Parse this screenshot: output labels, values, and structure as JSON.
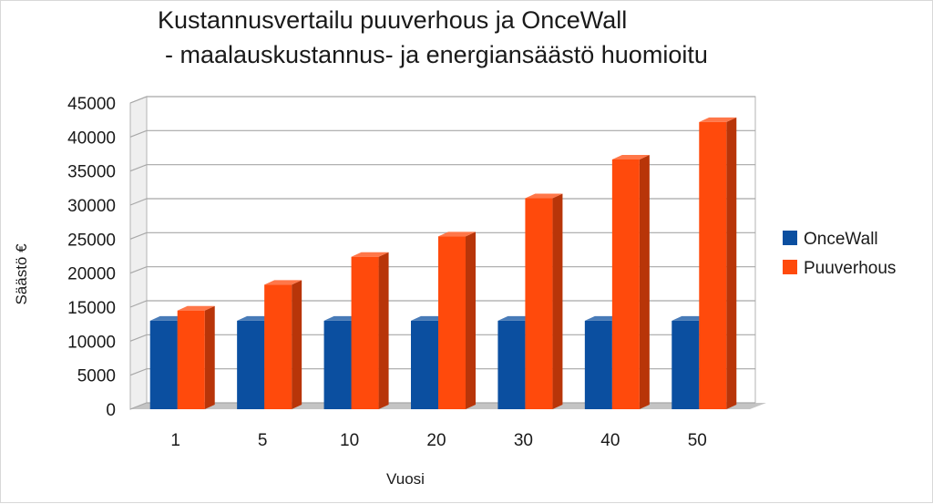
{
  "chart_data": {
    "type": "bar",
    "title": "Kustannusvertailu  puuverhous ja OnceWall",
    "subtitle": "- maalauskustannus- ja energiansäästö huomioitu",
    "xlabel": "Vuosi",
    "ylabel": "Säästö €",
    "categories": [
      "1",
      "5",
      "10",
      "20",
      "30",
      "40",
      "50"
    ],
    "series": [
      {
        "name": "OnceWall",
        "values": [
          13000,
          13000,
          13000,
          13000,
          13000,
          13000,
          13000
        ],
        "color": "#0b4fa0"
      },
      {
        "name": "Puuverhous",
        "values": [
          14500,
          18300,
          22400,
          25400,
          31000,
          36700,
          42200
        ],
        "color": "#ff4a0c"
      }
    ],
    "ylim": [
      0,
      45000
    ],
    "yticks": [
      "0",
      "5000",
      "10000",
      "15000",
      "20000",
      "25000",
      "30000",
      "35000",
      "40000",
      "45000"
    ],
    "grid": true,
    "legend_position": "right",
    "style": "3d-bar"
  }
}
